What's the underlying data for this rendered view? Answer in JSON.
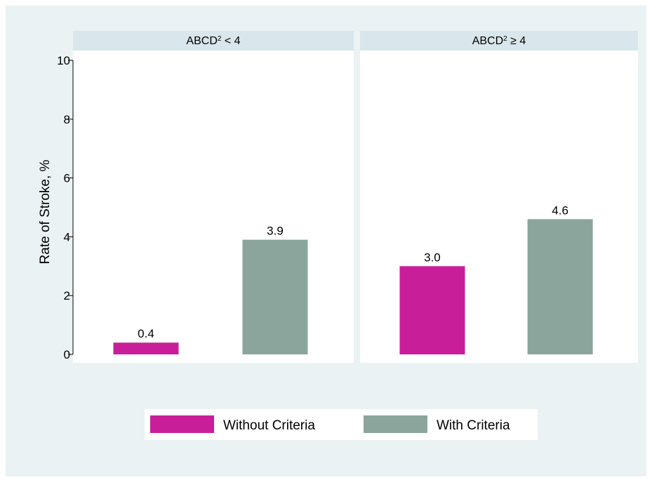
{
  "chart_data": {
    "type": "bar",
    "ylabel": "Rate of Stroke, %",
    "ylim": [
      0,
      10
    ],
    "yticks": [
      0,
      2,
      4,
      6,
      8,
      10
    ],
    "grid": false,
    "legend_position": "bottom",
    "panels": [
      {
        "title": "ABCD",
        "title_sup": "2",
        "title_suffix": " < 4",
        "values": [
          0.4,
          3.9
        ],
        "labels": [
          "0.4",
          "3.9"
        ]
      },
      {
        "title": "ABCD",
        "title_sup": "2",
        "title_suffix": " ≥ 4",
        "values": [
          3.0,
          4.6
        ],
        "labels": [
          "3.0",
          "4.6"
        ]
      }
    ],
    "series": [
      {
        "name": "Without Criteria",
        "color": "#C81E9A"
      },
      {
        "name": "With Criteria",
        "color": "#8BA59C"
      }
    ]
  },
  "colors": {
    "outer_background": "#EAF2F3",
    "panel_background": "#FFFFFF",
    "panel_header": "#D9E6EB"
  }
}
